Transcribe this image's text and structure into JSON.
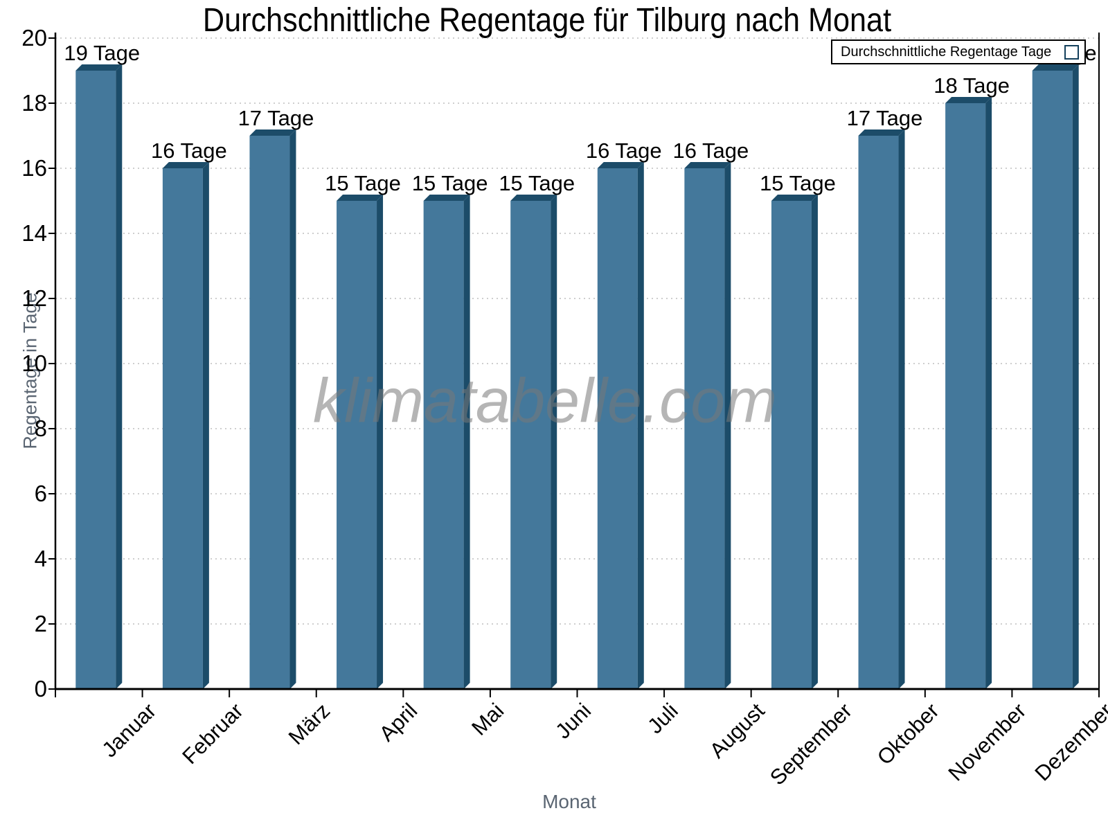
{
  "chart_data": {
    "type": "bar",
    "title": "Durchschnittliche Regentage für Tilburg nach Monat",
    "xlabel": "Monat",
    "ylabel": "Regentage in Tage",
    "categories": [
      "Januar",
      "Februar",
      "März",
      "April",
      "Mai",
      "Juni",
      "Juli",
      "August",
      "September",
      "Oktober",
      "November",
      "Dezember"
    ],
    "series": [
      {
        "name": "Durchschnittliche Regentage Tage",
        "values": [
          19,
          16,
          17,
          15,
          15,
          15,
          16,
          16,
          15,
          17,
          18,
          19
        ]
      }
    ],
    "value_label_suffix": " Tage",
    "ylim": [
      0,
      20
    ],
    "ytick_step": 2,
    "grid": "horizontal-dotted",
    "legend_position": "top-right",
    "colors": {
      "bar_face": "#44789B",
      "bar_edge": "#1C4C69",
      "grid_line": "#bdbdbd",
      "axis_line": "#000000",
      "axis_title_text": "#5a6572",
      "tick_text": "#000000"
    }
  },
  "legend": {
    "label": "Durchschnittliche Regentage Tage"
  },
  "watermark": {
    "text": "klimatabelle.com"
  }
}
